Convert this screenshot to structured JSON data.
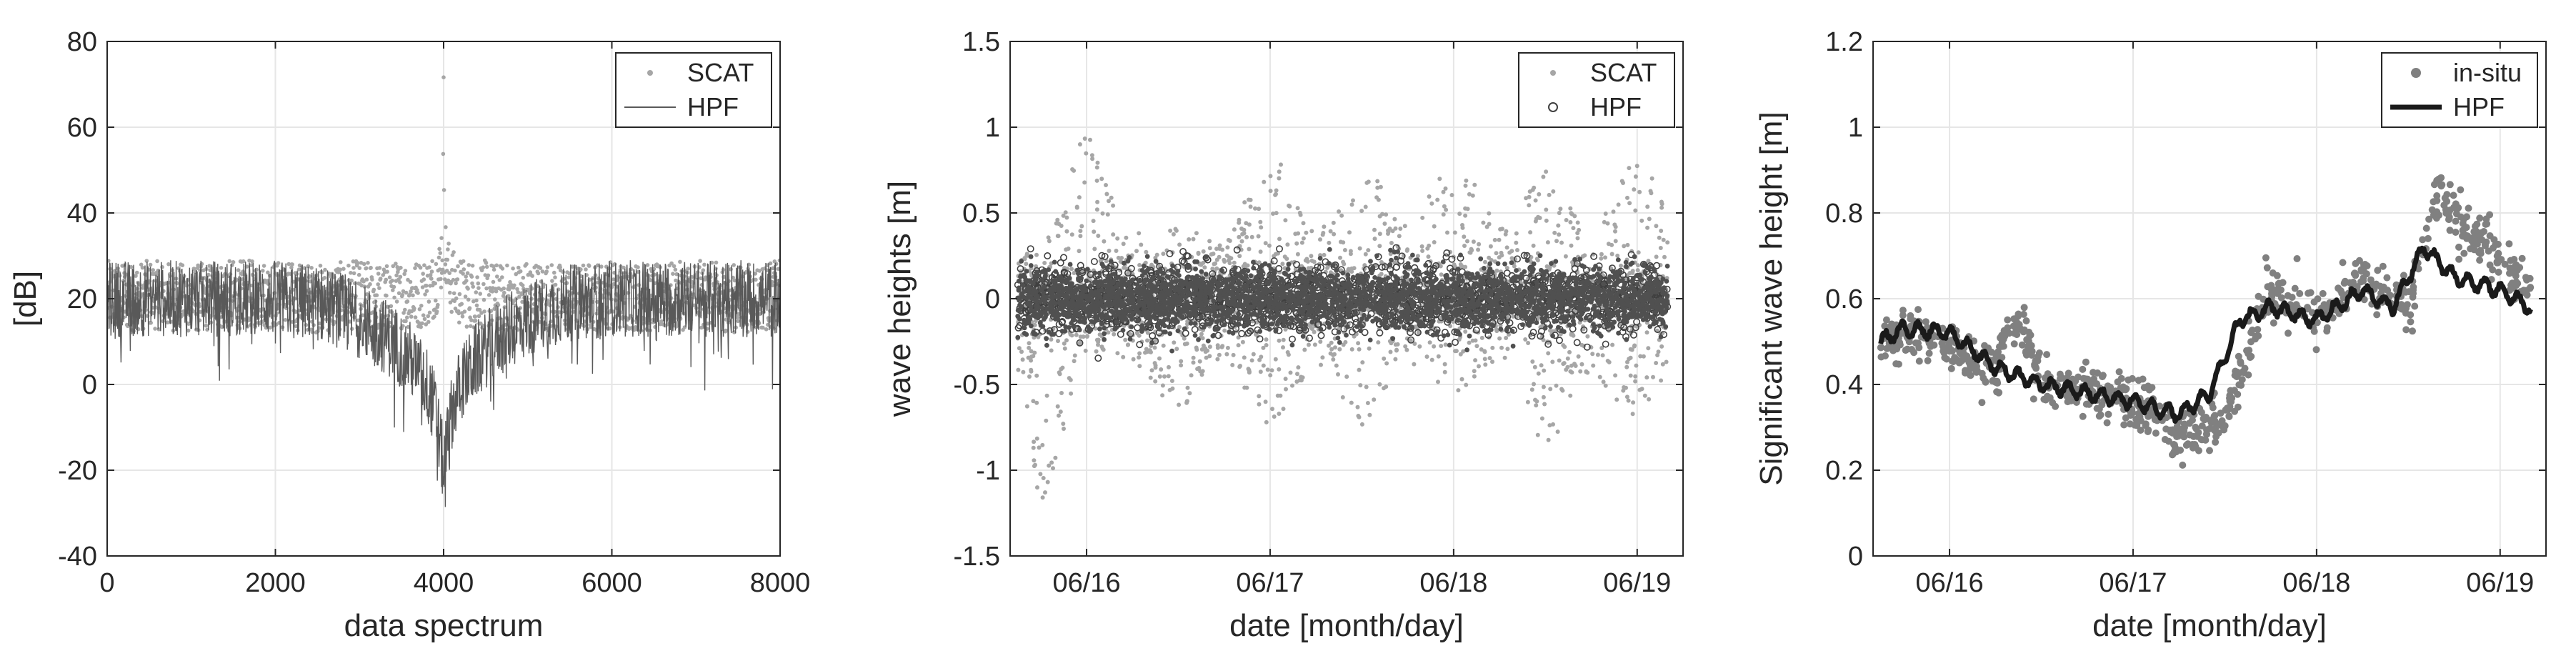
{
  "chart_data": [
    {
      "type": "line",
      "xlabel": "data spectrum",
      "ylabel": "[dB]",
      "xlim": [
        0,
        8000
      ],
      "ylim": [
        -40,
        80
      ],
      "xticks": [
        0,
        2000,
        4000,
        6000,
        8000
      ],
      "yticks": [
        -40,
        -20,
        0,
        20,
        40,
        60,
        80
      ],
      "xtick_labels": [
        "0",
        "2000",
        "4000",
        "6000",
        "8000"
      ],
      "ytick_labels": [
        "-40",
        "-20",
        "0",
        "20",
        "40",
        "60",
        "80"
      ],
      "grid": true,
      "legend": "top-right",
      "series": [
        {
          "name": "SCAT",
          "style": "dots",
          "color": "#a6a6a6",
          "x": [
            0,
            200,
            500,
            1000,
            1500,
            2000,
            2500,
            3000,
            3300,
            3500,
            3700,
            3850,
            3950,
            3990,
            4000,
            4010,
            4050,
            4150,
            4300,
            4500,
            4700,
            5000,
            5500,
            6000,
            6500,
            7000,
            7500,
            8000
          ],
          "values": [
            21,
            20,
            21,
            20,
            21,
            21,
            20,
            21,
            20,
            21,
            21,
            22,
            26,
            33,
            65,
            33,
            26,
            22,
            21,
            21,
            20,
            21,
            20,
            21,
            20,
            21,
            20,
            21
          ]
        },
        {
          "name": "HPF",
          "style": "line",
          "color": "#595959",
          "x": [
            0,
            500,
            1000,
            1500,
            2000,
            2500,
            2800,
            3100,
            3400,
            3600,
            3800,
            3900,
            3960,
            4000,
            4040,
            4100,
            4200,
            4400,
            4600,
            4900,
            5200,
            5500,
            6000,
            6500,
            7000,
            7500,
            8000
          ],
          "values": [
            20,
            20,
            20,
            20,
            20,
            19,
            17,
            14,
            10,
            6,
            0,
            -6,
            -14,
            -20,
            -14,
            -6,
            0,
            6,
            10,
            14,
            17,
            19,
            20,
            20,
            20,
            20,
            20
          ]
        }
      ]
    },
    {
      "type": "scatter",
      "xlabel": "date [month/day]",
      "ylabel": "wave heights [m]",
      "xlim": [
        "06/15 14:00",
        "06/19 06:00"
      ],
      "ylim": [
        -1.5,
        1.5
      ],
      "xticks": [
        "06/16",
        "06/17",
        "06/18",
        "06/19"
      ],
      "xtick_labels": [
        "06/16",
        "06/17",
        "06/18",
        "06/19"
      ],
      "yticks": [
        -1.5,
        -1,
        -0.5,
        0,
        0.5,
        1,
        1.5
      ],
      "ytick_labels": [
        "-1.5",
        "-1",
        "-0.5",
        "0",
        "0.5",
        "1",
        "1.5"
      ],
      "grid": true,
      "legend": "top-right",
      "series": [
        {
          "name": "SCAT",
          "style": "dots",
          "color": "#a6a6a6",
          "x": [
            "06/15 15:00",
            "06/15 18:00",
            "06/16 00:00",
            "06/16 06:00",
            "06/16 12:00",
            "06/16 18:00",
            "06/17 00:00",
            "06/17 06:00",
            "06/17 12:00",
            "06/17 18:00",
            "06/18 00:00",
            "06/18 06:00",
            "06/18 12:00",
            "06/18 18:00",
            "06/19 00:00",
            "06/19 04:00"
          ],
          "envelope_upper": [
            0.3,
            0.3,
            1.0,
            0.3,
            0.45,
            0.3,
            0.9,
            0.4,
            0.85,
            0.4,
            0.9,
            0.4,
            0.75,
            0.35,
            0.9,
            0.5
          ],
          "envelope_lower": [
            -0.4,
            -1.25,
            -0.3,
            -0.35,
            -0.7,
            -0.3,
            -0.8,
            -0.35,
            -0.75,
            -0.35,
            -0.6,
            -0.35,
            -0.95,
            -0.4,
            -0.75,
            -0.4
          ]
        },
        {
          "name": "HPF",
          "style": "open-circles",
          "color": "#404040",
          "x": [
            "06/15 15:00",
            "06/16 00:00",
            "06/17 00:00",
            "06/18 00:00",
            "06/19 00:00",
            "06/19 04:00"
          ],
          "envelope_upper": [
            0.3,
            0.35,
            0.3,
            0.35,
            0.45,
            0.55
          ],
          "envelope_lower": [
            -0.3,
            -0.35,
            -0.3,
            -0.35,
            -0.45,
            -0.5
          ]
        }
      ]
    },
    {
      "type": "line",
      "xlabel": "date [month/day]",
      "ylabel": "Significant wave height [m]",
      "xlim": [
        "06/15 14:00",
        "06/19 06:00"
      ],
      "ylim": [
        0,
        1.2
      ],
      "xticks": [
        "06/16",
        "06/17",
        "06/18",
        "06/19"
      ],
      "xtick_labels": [
        "06/16",
        "06/17",
        "06/18",
        "06/19"
      ],
      "yticks": [
        0,
        0.2,
        0.4,
        0.6,
        0.8,
        1,
        1.2
      ],
      "ytick_labels": [
        "0",
        "0.2",
        "0.4",
        "0.6",
        "0.8",
        "1",
        "1.2"
      ],
      "grid": true,
      "legend": "top-right",
      "series": [
        {
          "name": "in-situ",
          "style": "dots",
          "color": "#808080",
          "x": [
            "06/15 15:00",
            "06/15 18:00",
            "06/16 00:00",
            "06/16 06:00",
            "06/16 09:00",
            "06/16 12:00",
            "06/16 18:00",
            "06/17 00:00",
            "06/17 06:00",
            "06/17 12:00",
            "06/17 18:00",
            "06/18 00:00",
            "06/18 06:00",
            "06/18 12:00",
            "06/18 16:00",
            "06/18 20:00",
            "06/19 00:00",
            "06/19 04:00"
          ],
          "values": [
            0.5,
            0.52,
            0.48,
            0.44,
            0.55,
            0.4,
            0.38,
            0.36,
            0.28,
            0.32,
            0.62,
            0.55,
            0.65,
            0.58,
            0.85,
            0.75,
            0.7,
            0.62
          ]
        },
        {
          "name": "HPF",
          "style": "line",
          "color": "#1a1a1a",
          "x": [
            "06/15 15:00",
            "06/15 18:00",
            "06/16 00:00",
            "06/16 06:00",
            "06/16 12:00",
            "06/16 18:00",
            "06/17 00:00",
            "06/17 06:00",
            "06/17 10:00",
            "06/17 14:00",
            "06/17 18:00",
            "06/18 00:00",
            "06/18 06:00",
            "06/18 10:00",
            "06/18 14:00",
            "06/18 18:00",
            "06/19 00:00",
            "06/19 04:00"
          ],
          "values": [
            0.5,
            0.53,
            0.52,
            0.44,
            0.4,
            0.38,
            0.36,
            0.33,
            0.38,
            0.55,
            0.58,
            0.55,
            0.62,
            0.58,
            0.72,
            0.65,
            0.62,
            0.58
          ]
        }
      ]
    }
  ]
}
